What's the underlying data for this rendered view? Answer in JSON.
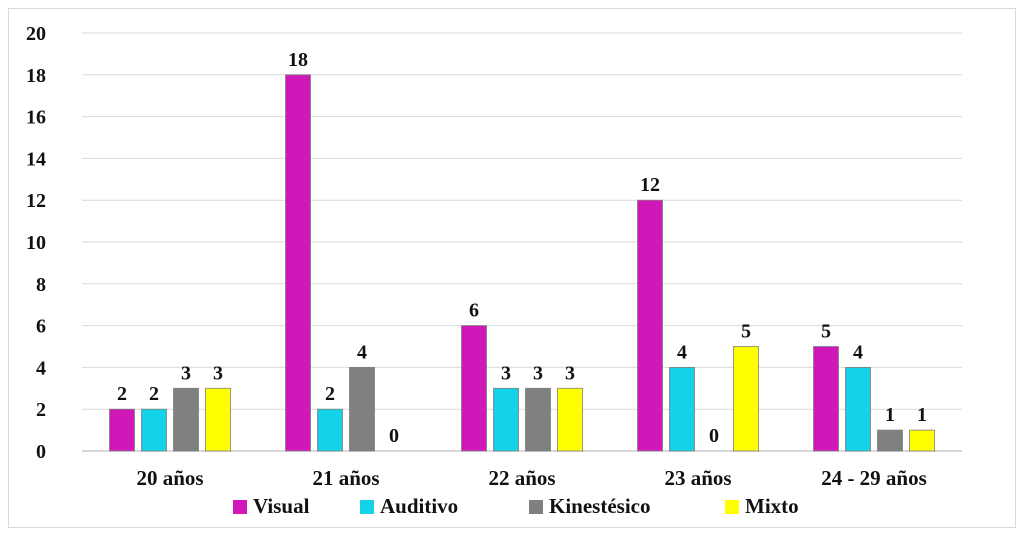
{
  "chart_data": {
    "type": "bar",
    "categories": [
      "20 años",
      "21 años",
      "22 años",
      "23 años",
      "24 - 29 años"
    ],
    "series": [
      {
        "name": "Visual",
        "color": "#d017b8",
        "values": [
          2,
          18,
          6,
          12,
          5
        ]
      },
      {
        "name": "Auditivo",
        "color": "#14d2e8",
        "values": [
          2,
          2,
          3,
          4,
          4
        ]
      },
      {
        "name": "Kinestésico",
        "color": "#808080",
        "values": [
          3,
          4,
          3,
          0,
          1
        ]
      },
      {
        "name": "Mixto",
        "color": "#ffff00",
        "values": [
          3,
          0,
          3,
          5,
          1
        ]
      }
    ],
    "title": "",
    "xlabel": "",
    "ylabel": "",
    "ylim": [
      0,
      20
    ],
    "yticks": [
      0,
      2,
      4,
      6,
      8,
      10,
      12,
      14,
      16,
      18,
      20
    ],
    "grid": true,
    "legend_position": "bottom"
  }
}
